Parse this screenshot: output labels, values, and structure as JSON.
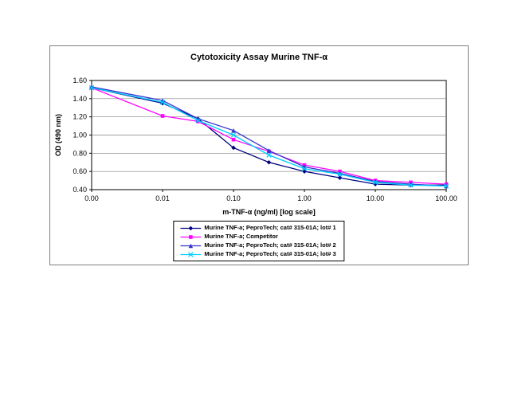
{
  "page": {
    "background": "#FFFFFF"
  },
  "chart_data": {
    "type": "line",
    "title": "Cytotoxicity Assay Murine TNF-α",
    "xlabel": "m-TNF-α (ng/ml) [log scale]",
    "ylabel": "OD (490 nm)",
    "x_scale": "log",
    "xlim": [
      0.001,
      100
    ],
    "ylim": [
      0.4,
      1.6
    ],
    "y_ticks": [
      0.4,
      0.6,
      0.8,
      1.0,
      1.2,
      1.4,
      1.6
    ],
    "x_tick_values": [
      0.001,
      0.01,
      0.1,
      1,
      10,
      100
    ],
    "x_tick_labels": [
      "0.00",
      "0.01",
      "0.10",
      "1.00",
      "10.00",
      "100.00"
    ],
    "grid": "horizontal",
    "legend_position": "bottom",
    "x": [
      0.001,
      0.01,
      0.0316,
      0.1,
      0.316,
      1,
      3.16,
      10,
      31.6,
      100
    ],
    "series": [
      {
        "name": "Murine TNF-a; PeproTech; cat# 315-01A; lot# 1",
        "color": "#000080",
        "marker": "diamond",
        "values": [
          1.52,
          1.35,
          1.18,
          0.86,
          0.7,
          0.6,
          0.53,
          0.46,
          0.45,
          0.45
        ]
      },
      {
        "name": "Murine TNF-a; Competitor",
        "color": "#FF00FF",
        "marker": "square",
        "values": [
          1.52,
          1.21,
          1.15,
          0.95,
          0.82,
          0.67,
          0.6,
          0.5,
          0.48,
          0.46
        ]
      },
      {
        "name": "Murine TNF-a; PeproTech; cat# 315-01A; lot# 2",
        "color": "#3333CC",
        "marker": "triangle",
        "values": [
          1.53,
          1.38,
          1.18,
          1.05,
          0.83,
          0.65,
          0.58,
          0.49,
          0.46,
          0.44
        ]
      },
      {
        "name": "Murine TNF-a; PeproTech; cat# 315-01A; lot# 3",
        "color": "#00CCFF",
        "marker": "x",
        "values": [
          1.52,
          1.36,
          1.16,
          1.0,
          0.78,
          0.63,
          0.57,
          0.48,
          0.45,
          0.44
        ]
      }
    ]
  }
}
